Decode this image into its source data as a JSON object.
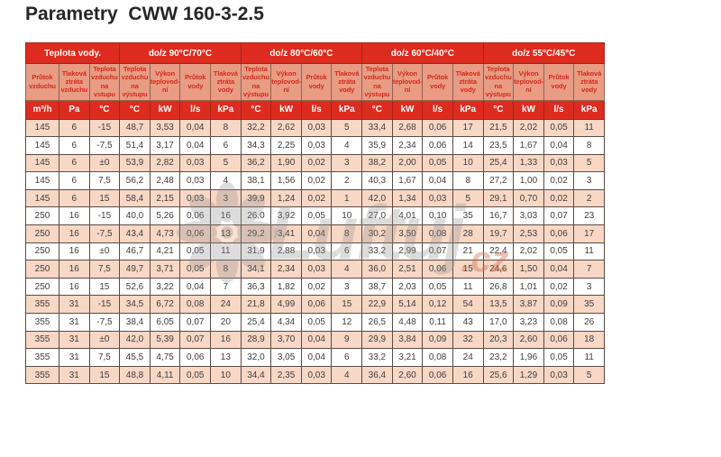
{
  "title": "Parametry  CWW 160-3-2.5",
  "watermark": {
    "text": "Luftuj",
    "suffix": ".cz"
  },
  "colors": {
    "header_red": "#dd2b1f",
    "header_red_border": "#a5231b",
    "subheader_salmon": "#e89c83",
    "subheader_text_red": "#d42a1c",
    "row_pink": "#f8d7c5",
    "row_white": "#ffffff",
    "grid_border": "#5a4c45",
    "data_text": "#3d3d3d",
    "title_text": "#262626"
  },
  "table": {
    "groups": [
      {
        "label": "Teplota vody.",
        "span": 3
      },
      {
        "label": "do/z 90°C/70°C",
        "span": 4
      },
      {
        "label": "do/z 80°C/60°C",
        "span": 4
      },
      {
        "label": "do/z 60°C/40°C",
        "span": 4
      },
      {
        "label": "do/z 55°C/45°C",
        "span": 4
      }
    ],
    "subheaders": [
      "Průtok vzduchu",
      "Tlaková ztráta vzduchu",
      "Teplota vzduchu na vstupu",
      "Teplota vzduchu na výstupu",
      "Výkon teplovod-ní",
      "Průtok vody",
      "Tlaková ztráta vody",
      "Teplota vzduchu na výstupu",
      "Výkon teplovod-ní",
      "Průtok vody",
      "Tlaková ztráta vody",
      "Teplota vzduchu na výstupu",
      "Výkon teplovod-ní",
      "Průtok vody",
      "Tlaková ztráta vody",
      "Teplota vzduchu na výstupu",
      "Výkon teplovod-ní",
      "Průtok vody",
      "Tlaková ztráta vody"
    ],
    "units": [
      "m³/h",
      "Pa",
      "°C",
      "°C",
      "kW",
      "l/s",
      "kPa",
      "°C",
      "kW",
      "l/s",
      "kPa",
      "°C",
      "kW",
      "l/s",
      "kPa",
      "°C",
      "kW",
      "l/s",
      "kPa"
    ],
    "rows": [
      [
        "145",
        "6",
        "-15",
        "48,7",
        "3,53",
        "0,04",
        "8",
        "32,2",
        "2,62",
        "0,03",
        "5",
        "33,4",
        "2,68",
        "0,06",
        "17",
        "21,5",
        "2,02",
        "0,05",
        "11"
      ],
      [
        "145",
        "6",
        "-7,5",
        "51,4",
        "3,17",
        "0,04",
        "6",
        "34,3",
        "2,25",
        "0,03",
        "4",
        "35,9",
        "2,34",
        "0,06",
        "14",
        "23,5",
        "1,67",
        "0,04",
        "8"
      ],
      [
        "145",
        "6",
        "±0",
        "53,9",
        "2,82",
        "0,03",
        "5",
        "36,2",
        "1,90",
        "0,02",
        "3",
        "38,2",
        "2,00",
        "0,05",
        "10",
        "25,4",
        "1,33",
        "0,03",
        "5"
      ],
      [
        "145",
        "6",
        "7,5",
        "56,2",
        "2,48",
        "0,03",
        "4",
        "38,1",
        "1,56",
        "0,02",
        "2",
        "40,3",
        "1,67",
        "0,04",
        "8",
        "27,2",
        "1,00",
        "0,02",
        "3"
      ],
      [
        "145",
        "6",
        "15",
        "58,4",
        "2,15",
        "0,03",
        "3",
        "39,9",
        "1,24",
        "0,02",
        "1",
        "42,0",
        "1,34",
        "0,03",
        "5",
        "29,1",
        "0,70",
        "0,02",
        "2"
      ],
      [
        "250",
        "16",
        "-15",
        "40,0",
        "5,26",
        "0,06",
        "16",
        "26,0",
        "3,92",
        "0,05",
        "10",
        "27,0",
        "4,01",
        "0,10",
        "35",
        "16,7",
        "3,03",
        "0,07",
        "23"
      ],
      [
        "250",
        "16",
        "-7,5",
        "43,4",
        "4,73",
        "0,06",
        "13",
        "29,2",
        "3,41",
        "0,04",
        "8",
        "30,2",
        "3,50",
        "0,08",
        "28",
        "19,7",
        "2,53",
        "0,06",
        "17"
      ],
      [
        "250",
        "16",
        "±0",
        "46,7",
        "4,21",
        "0,05",
        "11",
        "31,9",
        "2,88",
        "0,03",
        "6",
        "33,2",
        "2,99",
        "0,07",
        "21",
        "22,4",
        "2,02",
        "0,05",
        "11"
      ],
      [
        "250",
        "16",
        "7,5",
        "49,7",
        "3,71",
        "0,05",
        "8",
        "34,1",
        "2,34",
        "0,03",
        "4",
        "36,0",
        "2,51",
        "0,06",
        "15",
        "24,6",
        "1,50",
        "0,04",
        "7"
      ],
      [
        "250",
        "16",
        "15",
        "52,6",
        "3,22",
        "0,04",
        "7",
        "36,3",
        "1,82",
        "0,02",
        "3",
        "38,7",
        "2,03",
        "0,05",
        "11",
        "26,8",
        "1,01",
        "0,02",
        "3"
      ],
      [
        "355",
        "31",
        "-15",
        "34,5",
        "6,72",
        "0,08",
        "24",
        "21,8",
        "4,99",
        "0,06",
        "15",
        "22,9",
        "5,14",
        "0,12",
        "54",
        "13,5",
        "3,87",
        "0,09",
        "35"
      ],
      [
        "355",
        "31",
        "-7,5",
        "38,4",
        "6,05",
        "0,07",
        "20",
        "25,4",
        "4,34",
        "0,05",
        "12",
        "26,5",
        "4,48",
        "0,11",
        "43",
        "17,0",
        "3,23",
        "0,08",
        "26"
      ],
      [
        "355",
        "31",
        "±0",
        "42,0",
        "5,39",
        "0,07",
        "16",
        "28,9",
        "3,70",
        "0,04",
        "9",
        "29,9",
        "3,84",
        "0,09",
        "32",
        "20,3",
        "2,60",
        "0,06",
        "18"
      ],
      [
        "355",
        "31",
        "7,5",
        "45,5",
        "4,75",
        "0,06",
        "13",
        "32,0",
        "3,05",
        "0,04",
        "6",
        "33,2",
        "3,21",
        "0,08",
        "24",
        "23,2",
        "1,96",
        "0,05",
        "11"
      ],
      [
        "355",
        "31",
        "15",
        "48,8",
        "4,11",
        "0,05",
        "10",
        "34,4",
        "2,35",
        "0,03",
        "4",
        "36,4",
        "2,60",
        "0,06",
        "16",
        "25,6",
        "1,29",
        "0,03",
        "5"
      ]
    ]
  }
}
